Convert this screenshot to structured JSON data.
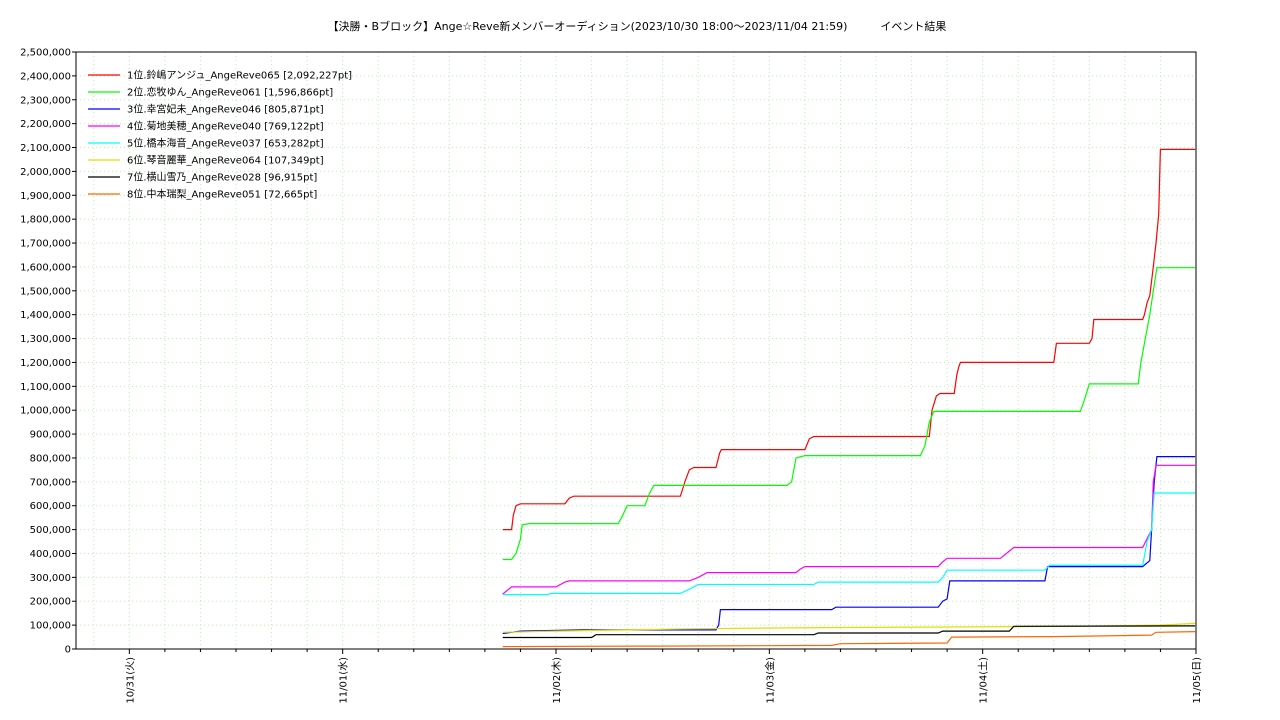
{
  "chart_data": {
    "type": "line",
    "title": "【決勝・Bブロック】Ange☆Reve新メンバーオーディション(2023/10/30 18:00〜2023/11/04 21:59)　　　イベント結果",
    "xlabel": "",
    "ylabel": "",
    "x_ticks": [
      "10/31(火)",
      "11/01(水)",
      "11/02(木)",
      "11/03(金)",
      "11/04(土)",
      "11/05(日)"
    ],
    "xlim_hours": [
      0,
      126
    ],
    "ylim": [
      0,
      2500000
    ],
    "y_step": 100000,
    "grid": true,
    "legend_position": "top-left",
    "series": [
      {
        "name": "1位.鈴嶋アンジュ_AngeReve065 [2,092,227pt]",
        "color": "#ff0000",
        "points": [
          [
            48,
            500000
          ],
          [
            49,
            500000
          ],
          [
            49.2,
            560000
          ],
          [
            49.5,
            600000
          ],
          [
            50,
            608000
          ],
          [
            55,
            608000
          ],
          [
            55.5,
            632000
          ],
          [
            56,
            640000
          ],
          [
            68,
            640000
          ],
          [
            68.5,
            700000
          ],
          [
            69,
            750000
          ],
          [
            69.5,
            760000
          ],
          [
            72,
            760000
          ],
          [
            72.4,
            820000
          ],
          [
            72.6,
            835000
          ],
          [
            82,
            835000
          ],
          [
            82.5,
            880000
          ],
          [
            83,
            890000
          ],
          [
            96,
            890000
          ],
          [
            96.3,
            1000000
          ],
          [
            96.8,
            1060000
          ],
          [
            97.2,
            1070000
          ],
          [
            98.8,
            1070000
          ],
          [
            99.1,
            1150000
          ],
          [
            99.3,
            1180000
          ],
          [
            99.5,
            1200000
          ],
          [
            110,
            1200000
          ],
          [
            110.3,
            1280000
          ],
          [
            114,
            1280000
          ],
          [
            114.3,
            1300000
          ],
          [
            114.5,
            1380000
          ],
          [
            120,
            1380000
          ],
          [
            120.2,
            1400000
          ],
          [
            120.5,
            1450000
          ],
          [
            120.8,
            1480000
          ],
          [
            121.2,
            1600000
          ],
          [
            121.5,
            1700000
          ],
          [
            121.8,
            1820000
          ],
          [
            122,
            2092227
          ],
          [
            125.9,
            2092227
          ]
        ]
      },
      {
        "name": "2位.恋牧ゆん_AngeReve061 [1,596,866pt]",
        "color": "#00ff00",
        "points": [
          [
            48,
            375000
          ],
          [
            49,
            375000
          ],
          [
            49.5,
            400000
          ],
          [
            50,
            460000
          ],
          [
            50.2,
            520000
          ],
          [
            51,
            525000
          ],
          [
            61,
            525000
          ],
          [
            61.5,
            560000
          ],
          [
            62,
            600000
          ],
          [
            64,
            600000
          ],
          [
            64.5,
            650000
          ],
          [
            65,
            685000
          ],
          [
            80,
            685000
          ],
          [
            80.5,
            700000
          ],
          [
            81,
            800000
          ],
          [
            82,
            810000
          ],
          [
            95,
            810000
          ],
          [
            95.5,
            850000
          ],
          [
            96,
            950000
          ],
          [
            96.5,
            995000
          ],
          [
            113,
            995000
          ],
          [
            113.5,
            1050000
          ],
          [
            114,
            1110000
          ],
          [
            119.5,
            1110000
          ],
          [
            119.8,
            1200000
          ],
          [
            120.3,
            1300000
          ],
          [
            120.8,
            1400000
          ],
          [
            121.2,
            1500000
          ],
          [
            121.6,
            1596866
          ],
          [
            125.9,
            1596866
          ]
        ]
      },
      {
        "name": "3位.幸宮妃未_AngeReve046 [805,871pt]",
        "color": "#0000ff",
        "points": [
          [
            48,
            65000
          ],
          [
            50,
            75000
          ],
          [
            57,
            80000
          ],
          [
            72,
            80000
          ],
          [
            72.3,
            100000
          ],
          [
            72.5,
            165000
          ],
          [
            85,
            165000
          ],
          [
            85.5,
            175000
          ],
          [
            97,
            175000
          ],
          [
            97.5,
            200000
          ],
          [
            98,
            210000
          ],
          [
            98.3,
            285000
          ],
          [
            109,
            285000
          ],
          [
            109.3,
            345000
          ],
          [
            120,
            345000
          ],
          [
            120.8,
            370000
          ],
          [
            121,
            500000
          ],
          [
            121.3,
            700000
          ],
          [
            121.6,
            805871
          ],
          [
            125.9,
            805871
          ]
        ]
      },
      {
        "name": "4位.菊地美穂_AngeReve040 [769,122pt]",
        "color": "#ff00ff",
        "points": [
          [
            48,
            230000
          ],
          [
            48.5,
            245000
          ],
          [
            49,
            260000
          ],
          [
            54,
            260000
          ],
          [
            55,
            280000
          ],
          [
            55.5,
            285000
          ],
          [
            69,
            285000
          ],
          [
            70,
            300000
          ],
          [
            71,
            320000
          ],
          [
            81,
            320000
          ],
          [
            81.5,
            335000
          ],
          [
            82,
            345000
          ],
          [
            97,
            345000
          ],
          [
            97.5,
            365000
          ],
          [
            98,
            380000
          ],
          [
            104,
            380000
          ],
          [
            105,
            410000
          ],
          [
            105.5,
            425000
          ],
          [
            120,
            425000
          ],
          [
            121,
            500000
          ],
          [
            121.2,
            700000
          ],
          [
            121.5,
            769122
          ],
          [
            125.9,
            769122
          ]
        ]
      },
      {
        "name": "5位.橋本海音_AngeReve037 [653,282pt]",
        "color": "#00ffff",
        "points": [
          [
            48,
            228000
          ],
          [
            53,
            228000
          ],
          [
            53.5,
            233000
          ],
          [
            68,
            233000
          ],
          [
            69,
            250000
          ],
          [
            70,
            270000
          ],
          [
            83,
            270000
          ],
          [
            83.5,
            280000
          ],
          [
            97,
            280000
          ],
          [
            97.5,
            300000
          ],
          [
            98,
            330000
          ],
          [
            109,
            330000
          ],
          [
            109.5,
            350000
          ],
          [
            120,
            350000
          ],
          [
            120.5,
            450000
          ],
          [
            121,
            500000
          ],
          [
            121.3,
            653282
          ],
          [
            125.9,
            653282
          ]
        ]
      },
      {
        "name": "6位.琴音麗華_AngeReve064 [107,349pt]",
        "color": "#e0e000",
        "points": [
          [
            48,
            70000
          ],
          [
            54,
            75000
          ],
          [
            70,
            85000
          ],
          [
            86,
            90000
          ],
          [
            98,
            92000
          ],
          [
            112,
            95000
          ],
          [
            122,
            100000
          ],
          [
            125.9,
            107349
          ]
        ]
      },
      {
        "name": "7位.横山雪乃_AngeReve028 [96,915pt]",
        "color": "#000000",
        "points": [
          [
            48,
            48000
          ],
          [
            58,
            48000
          ],
          [
            58.5,
            60000
          ],
          [
            83,
            60000
          ],
          [
            83.5,
            67000
          ],
          [
            97,
            67000
          ],
          [
            97.5,
            75000
          ],
          [
            105,
            75000
          ],
          [
            105.5,
            95000
          ],
          [
            125.9,
            96915
          ]
        ]
      },
      {
        "name": "8位.中本瑞梨_AngeReve051 [72,665pt]",
        "color": "#ff6600",
        "points": [
          [
            48,
            10000
          ],
          [
            65,
            12000
          ],
          [
            85,
            15000
          ],
          [
            86,
            22000
          ],
          [
            98,
            25000
          ],
          [
            98.5,
            50000
          ],
          [
            110,
            52000
          ],
          [
            121,
            58000
          ],
          [
            121.5,
            70000
          ],
          [
            125.9,
            72665
          ]
        ]
      }
    ]
  }
}
